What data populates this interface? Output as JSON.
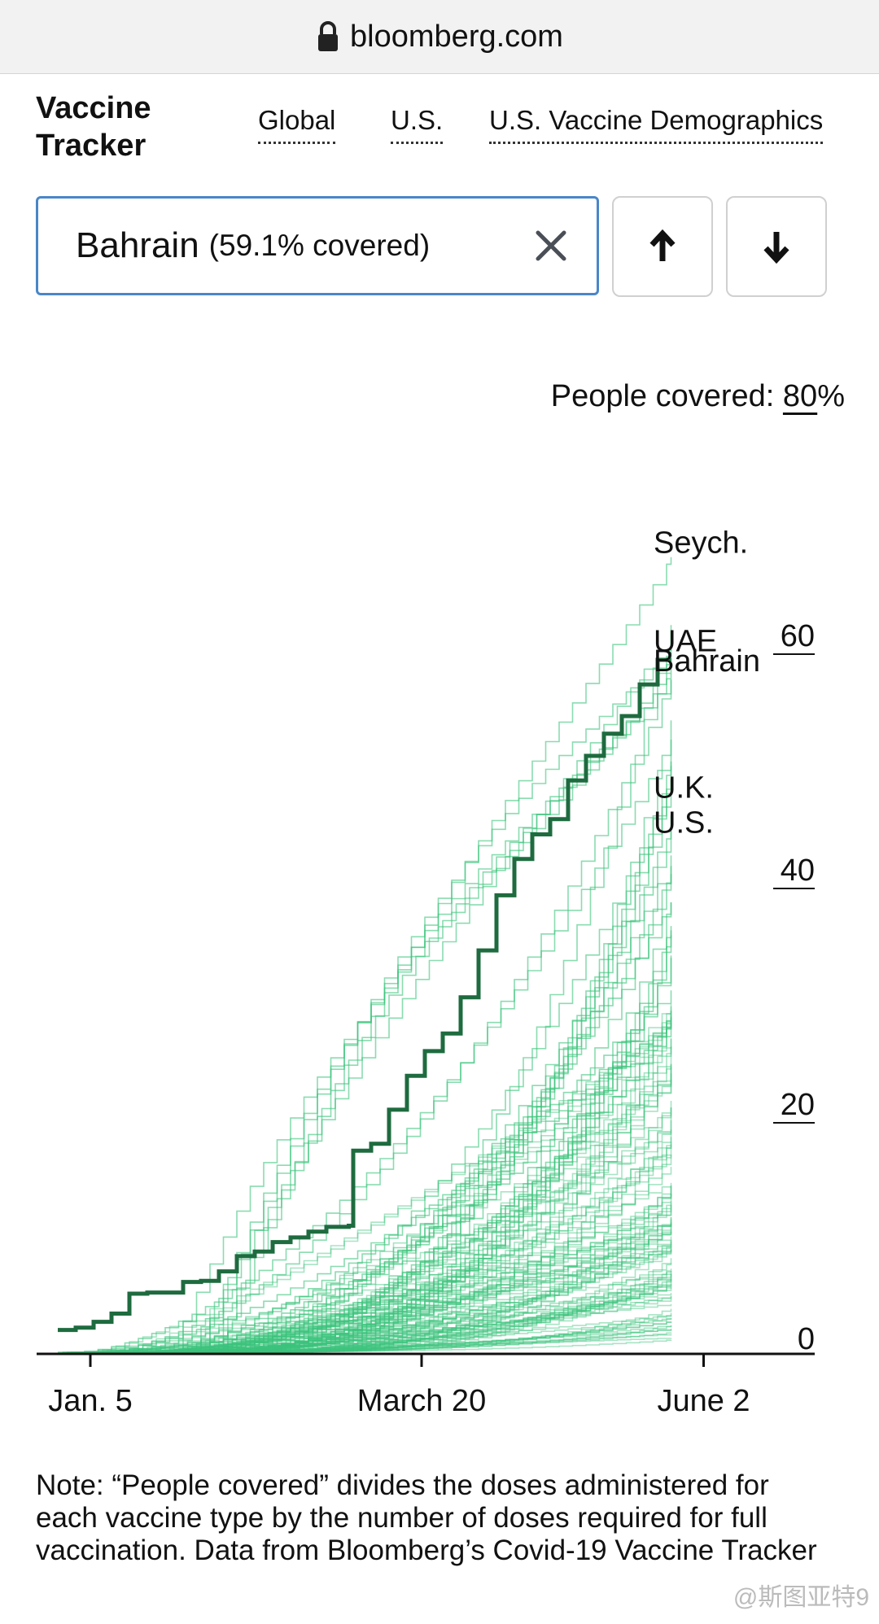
{
  "browser": {
    "url": "bloomberg.com"
  },
  "header": {
    "brand_line1": "Vaccine",
    "brand_line2": "Tracker",
    "nav": [
      "Global",
      "U.S.",
      "U.S. Vaccine Demographics"
    ]
  },
  "search": {
    "country": "Bahrain",
    "coverage": "(59.1% covered)"
  },
  "people_covered": {
    "label": "People covered:",
    "value": "80",
    "suffix": "%"
  },
  "chart_data": {
    "type": "line",
    "x_ticks": [
      "Jan. 5",
      "March 20",
      "June 2"
    ],
    "y_ticks": [
      "0",
      "20",
      "40",
      "60"
    ],
    "ylim": [
      0,
      70
    ],
    "highlight": {
      "name": "Bahrain",
      "points": [
        [
          0,
          1.9
        ],
        [
          4,
          2.1
        ],
        [
          8,
          2.6
        ],
        [
          12,
          3.3
        ],
        [
          16,
          5.0
        ],
        [
          20,
          5.1
        ],
        [
          24,
          5.1
        ],
        [
          28,
          6.0
        ],
        [
          32,
          6.1
        ],
        [
          36,
          6.9
        ],
        [
          40,
          8.2
        ],
        [
          44,
          8.6
        ],
        [
          48,
          9.4
        ],
        [
          52,
          9.8
        ],
        [
          56,
          10.3
        ],
        [
          60,
          10.7
        ],
        [
          65,
          10.8
        ],
        [
          66,
          17.2
        ],
        [
          70,
          17.8
        ],
        [
          74,
          20.7
        ],
        [
          78,
          23.6
        ],
        [
          82,
          25.7
        ],
        [
          86,
          27.2
        ],
        [
          90,
          30.3
        ],
        [
          94,
          34.3
        ],
        [
          98,
          39.0
        ],
        [
          102,
          42.1
        ],
        [
          106,
          44.2
        ],
        [
          110,
          45.5
        ],
        [
          114,
          48.8
        ],
        [
          118,
          50.9
        ],
        [
          122,
          52.8
        ],
        [
          126,
          54.3
        ],
        [
          130,
          57.0
        ],
        [
          134,
          59.1
        ],
        [
          137,
          59.1
        ]
      ]
    },
    "labels": [
      {
        "text": "Seych.",
        "y": 69.2
      },
      {
        "text": "UAE",
        "y": 60.8
      },
      {
        "text": "Bahrain",
        "y": 59.1
      },
      {
        "text": "U.K.",
        "y": 48.3
      },
      {
        "text": "U.S.",
        "y": 45.3
      }
    ],
    "highlight_color": "#1e6b3f",
    "series_color": "#3cc47c"
  },
  "note": "Note: “People covered” divides the doses administered for each vaccine type by the number of doses required for full vaccination. Data from Bloomberg’s Covid-19 Vaccine Tracker",
  "watermark": "@斯图亚特9"
}
